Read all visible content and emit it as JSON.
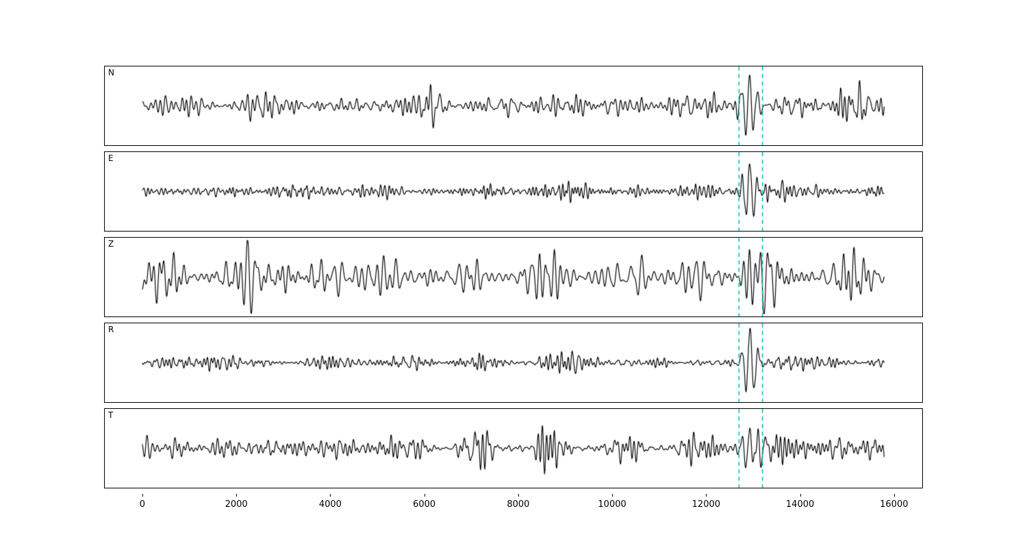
{
  "page": {
    "background": "#ffffff"
  },
  "chart_data": {
    "type": "line",
    "title": "",
    "xlabel": "",
    "ylabel": "",
    "legend": null,
    "grid": false,
    "xlim": [
      -800,
      16600
    ],
    "x_ticks": [
      0,
      2000,
      4000,
      6000,
      8000,
      10000,
      12000,
      14000,
      16000
    ],
    "x_data_range": [
      0,
      15790
    ],
    "n_samples": 1580,
    "sample_spacing": 10,
    "event_window": {
      "start": 12700,
      "end": 13200,
      "line_color": "#00bfbf",
      "line_style": "dashed",
      "dash": [
        6,
        5
      ]
    },
    "panels": [
      {
        "label": "N",
        "line_color": "#000000",
        "seed": 101,
        "noise_amp": 0.115,
        "freq_band": [
          0.03,
          0.13
        ],
        "event": {
          "x": 12920,
          "amp": 0.85,
          "sigma": 13,
          "freq": 0.06
        },
        "post_event_gain": 1.25
      },
      {
        "label": "E",
        "line_color": "#000000",
        "seed": 202,
        "noise_amp": 0.07,
        "freq_band": [
          0.04,
          0.16
        ],
        "event": {
          "x": 12930,
          "amp": 0.8,
          "sigma": 13,
          "freq": 0.06
        },
        "post_event_gain": 1.1
      },
      {
        "label": "Z",
        "line_color": "#000000",
        "seed": 303,
        "noise_amp": 0.2,
        "freq_band": [
          0.025,
          0.1
        ],
        "event": {
          "x": 12920,
          "amp": 0.5,
          "sigma": 10,
          "freq": 0.065
        },
        "post_event_gain": 1.0
      },
      {
        "label": "R",
        "line_color": "#000000",
        "seed": 404,
        "noise_amp": 0.065,
        "freq_band": [
          0.04,
          0.15
        ],
        "event": {
          "x": 12930,
          "amp": 0.9,
          "sigma": 13,
          "freq": 0.055
        },
        "post_event_gain": 1.05
      },
      {
        "label": "T",
        "line_color": "#000000",
        "seed": 505,
        "noise_amp": 0.115,
        "freq_band": [
          0.03,
          0.13
        ],
        "event": {
          "x": 12930,
          "amp": 0.7,
          "sigma": 13,
          "freq": 0.06
        },
        "post_event_gain": 1.2
      }
    ]
  }
}
